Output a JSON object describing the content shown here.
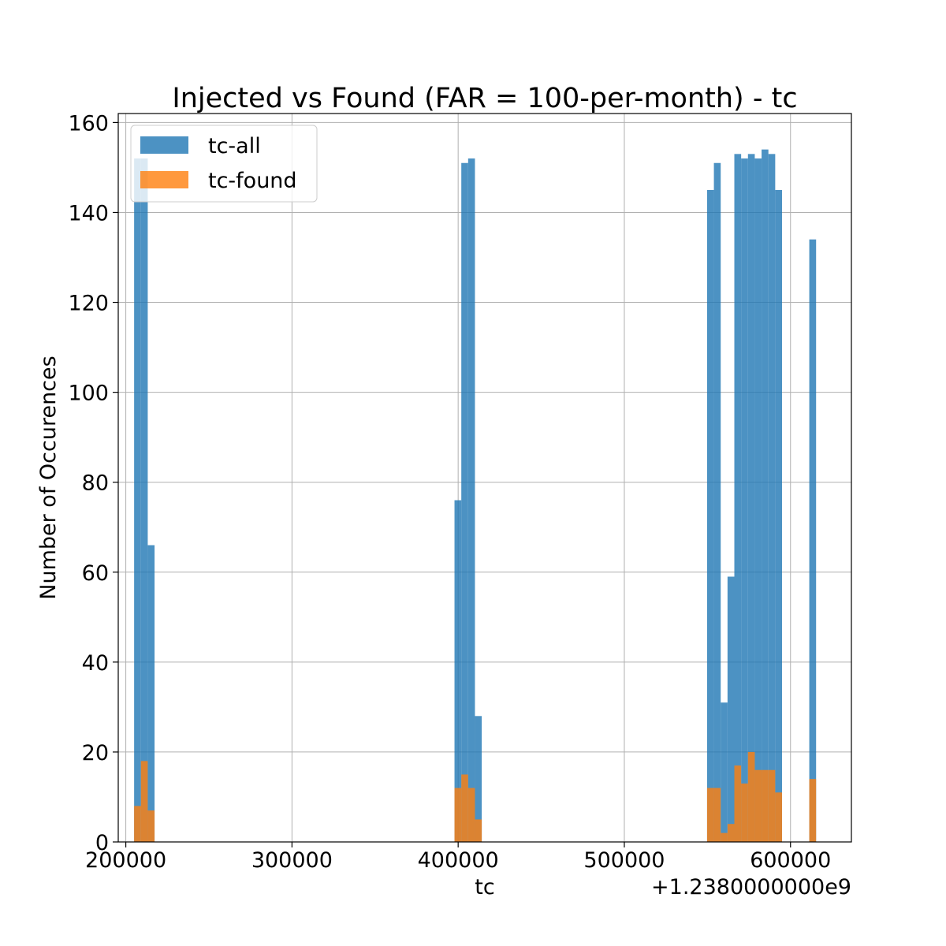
{
  "chart_data": {
    "type": "bar",
    "title": "Injected vs Found (FAR = 100-per-month) - tc",
    "xlabel": "tc",
    "ylabel": "Number of Occurences",
    "offset_text": "+1.2380000000e9",
    "xlim": [
      1238195450,
      1238636650
    ],
    "ylim": [
      0,
      162
    ],
    "x_ticks": [
      200000,
      300000,
      400000,
      500000,
      600000
    ],
    "x_tick_labels": [
      "200000",
      "300000",
      "400000",
      "500000",
      "600000"
    ],
    "y_ticks": [
      0,
      20,
      40,
      60,
      80,
      100,
      120,
      140,
      160
    ],
    "y_tick_labels": [
      "0",
      "20",
      "40",
      "60",
      "80",
      "100",
      "120",
      "140",
      "160"
    ],
    "grid": true,
    "legend_position": "upper-left",
    "x_offset": 1238000000,
    "bin_width": 4100,
    "series": [
      {
        "name": "tc-all",
        "color": "#1f77b4",
        "opacity": 0.8,
        "bins": [
          [
            1238205000,
            152
          ],
          [
            1238209100,
            152
          ],
          [
            1238213200,
            66
          ],
          [
            1238397800,
            76
          ],
          [
            1238401900,
            151
          ],
          [
            1238406000,
            152
          ],
          [
            1238410100,
            28
          ],
          [
            1238549800,
            145
          ],
          [
            1238553900,
            151
          ],
          [
            1238558000,
            31
          ],
          [
            1238562100,
            59
          ],
          [
            1238566200,
            153
          ],
          [
            1238570300,
            152
          ],
          [
            1238574400,
            153
          ],
          [
            1238578500,
            152
          ],
          [
            1238582600,
            154
          ],
          [
            1238586700,
            153
          ],
          [
            1238590800,
            145
          ],
          [
            1238611300,
            134
          ]
        ]
      },
      {
        "name": "tc-found",
        "color": "#ff7f0e",
        "opacity": 0.8,
        "bins": [
          [
            1238205000,
            8
          ],
          [
            1238209100,
            18
          ],
          [
            1238213200,
            7
          ],
          [
            1238397800,
            12
          ],
          [
            1238401900,
            15
          ],
          [
            1238406000,
            12
          ],
          [
            1238410100,
            5
          ],
          [
            1238549800,
            12
          ],
          [
            1238553900,
            12
          ],
          [
            1238558000,
            2
          ],
          [
            1238562100,
            4
          ],
          [
            1238566200,
            17
          ],
          [
            1238570300,
            13
          ],
          [
            1238574400,
            20
          ],
          [
            1238578500,
            16
          ],
          [
            1238582600,
            16
          ],
          [
            1238586700,
            16
          ],
          [
            1238590800,
            11
          ],
          [
            1238611300,
            14
          ]
        ]
      }
    ]
  }
}
